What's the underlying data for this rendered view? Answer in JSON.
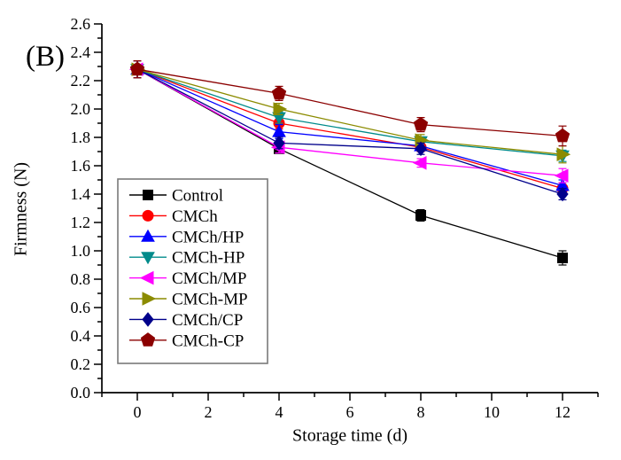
{
  "chart_data": {
    "type": "line",
    "panel_label": "(B)",
    "xlabel": "Storage time (d)",
    "ylabel": "Firmness (N)",
    "x": [
      0,
      4,
      8,
      12
    ],
    "xlim": [
      -1,
      13
    ],
    "ylim": [
      0.0,
      2.6
    ],
    "x_major_ticks": [
      0,
      2,
      4,
      6,
      8,
      10,
      12
    ],
    "x_minor_ticks": [
      -1,
      1,
      3,
      5,
      7,
      9,
      11,
      13
    ],
    "y_major_ticks": [
      0.0,
      0.2,
      0.4,
      0.6,
      0.8,
      1.0,
      1.2,
      1.4,
      1.6,
      1.8,
      2.0,
      2.2,
      2.4,
      2.6
    ],
    "y_minor_ticks": [
      0.1,
      0.3,
      0.5,
      0.7,
      0.9,
      1.1,
      1.3,
      1.5,
      1.7,
      1.9,
      2.1,
      2.3,
      2.5
    ],
    "grid": false,
    "legend_position": "middle-left",
    "axis_color": "#000000",
    "legend_border_color": "#7a7a7a",
    "series": [
      {
        "name": "Control",
        "color": "#000000",
        "marker": "square",
        "values": [
          2.28,
          1.72,
          1.25,
          0.95
        ],
        "errors": [
          0.06,
          0.03,
          0.04,
          0.05
        ]
      },
      {
        "name": "CMCh",
        "color": "#ff0000",
        "marker": "circle",
        "values": [
          2.28,
          1.9,
          1.73,
          1.44
        ],
        "errors": [
          0.06,
          0.04,
          0.03,
          0.04
        ]
      },
      {
        "name": "CMCh/HP",
        "color": "#0000ff",
        "marker": "triangle-up",
        "values": [
          2.28,
          1.84,
          1.74,
          1.46
        ],
        "errors": [
          0.06,
          0.05,
          0.03,
          0.04
        ]
      },
      {
        "name": "CMCh-HP",
        "color": "#008b8b",
        "marker": "triangle-down",
        "values": [
          2.28,
          1.94,
          1.77,
          1.67
        ],
        "errors": [
          0.06,
          0.04,
          0.03,
          0.04
        ]
      },
      {
        "name": "CMCh/MP",
        "color": "#ff00ff",
        "marker": "triangle-left",
        "values": [
          2.28,
          1.73,
          1.62,
          1.53
        ],
        "errors": [
          0.06,
          0.04,
          0.03,
          0.05
        ]
      },
      {
        "name": "CMCh-MP",
        "color": "#8b8b00",
        "marker": "triangle-right",
        "values": [
          2.28,
          2.0,
          1.78,
          1.68
        ],
        "errors": [
          0.06,
          0.04,
          0.04,
          0.06
        ]
      },
      {
        "name": "CMCh/CP",
        "color": "#00008b",
        "marker": "diamond",
        "values": [
          2.28,
          1.76,
          1.72,
          1.4
        ],
        "errors": [
          0.06,
          0.04,
          0.04,
          0.04
        ]
      },
      {
        "name": "CMCh-CP",
        "color": "#8b0000",
        "marker": "pentagon",
        "values": [
          2.28,
          2.11,
          1.89,
          1.81
        ],
        "errors": [
          0.06,
          0.05,
          0.05,
          0.07
        ]
      }
    ]
  }
}
